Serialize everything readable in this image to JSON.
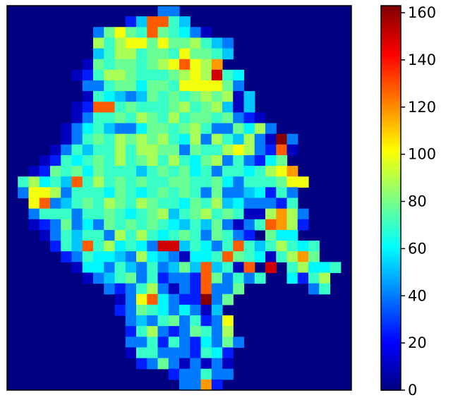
{
  "chart_data": {
    "type": "heatmap",
    "title": "",
    "xlabel": "",
    "ylabel": "",
    "colormap": "jet",
    "grid": false,
    "value_range": [
      0,
      163
    ],
    "colorbar": {
      "ticks": [
        0,
        20,
        40,
        60,
        80,
        100,
        120,
        140,
        160
      ],
      "tick_labels": [
        "0",
        "20",
        "40",
        "60",
        "80",
        "100",
        "120",
        "140",
        "160"
      ],
      "placement": "right"
    },
    "legend_char_map": {
      ".": 0,
      "b": 10,
      "B": 25,
      "c": 40,
      "C": 52,
      "t": 60,
      "g": 70,
      "G": 78,
      "L": 88,
      "y": 100,
      "Y": 108,
      "o": 118,
      "O": 128,
      "r": 140,
      "R": 150,
      "D": 162
    },
    "rows": [
      "..............cc..........",
      "...........BCOOgC.........",
      "........cGyGgOGgtcb.......",
      "........LgLyyGyGGLgCc.....",
      "........CgLLgGGgyGGgC.....",
      ".......bGgGGgGLyOyLo......",
      "......bBgLLGgggGLyLRgt....",
      ".......ccgGGtGGgyyyyGc....",
      ".......bgtCcCGgGgGLGLbC...",
      "......bBOOgGgggGLgGLCbC...",
      "......bcggGgLGgLgGGgGcBb..",
      ".....bctgCcctGGgGLgccGtLc.",
      ".....bcgGgLGLGLgtLcLgCLcbDc",
      "....bcgCggLgLLGGcGggLyLcBOb",
      "...bBgtgGgLgGLgLgtGLcgcBtG",
      "..bBGgGtGgggCgGgGtgcggtgLyo",
      ".gLtgCOgLgGgGggGGggGtcgggGyy",
      ".cyyLcgggtGgtgGgGgcGccCtBgc",
      "..yOcCgGgLGgLGggtGgLCtcccBg",
      "..cgggcggGgtgGLCgGLgGgbbLoLc",
      "..bBcGctcGgGgGgtCgCGcbcgOoLB",
      "...bcgCggcLgLgtgGgcGgcB.Gtt",
      "....BgCOgLtgtcRRCgtcgOgCgLgtg",
      ".....BcgttCcLtCcbttgOGgtbgLoG",
      "......bttcgCcgcCGCOCgbO.R.gLttg",
      ".......bcCgGcgBccBOGcgcg..tBgL",
      ".........cBcgLcbcBOccG......cg",
      "..........bcyOtcBBDcG.......",
      "..........BcGgtctcbC.......",
      "...........cCcgGcgBcy.......",
      "...........BgLcBcGgcL.....",
      "...........ccgBgcBtcGc.....",
      "...........bggcccBgtB......",
      "............BcGcbcbcb.....",
      "...............Bccgcc.....",
      "................ccoB........"
    ]
  }
}
